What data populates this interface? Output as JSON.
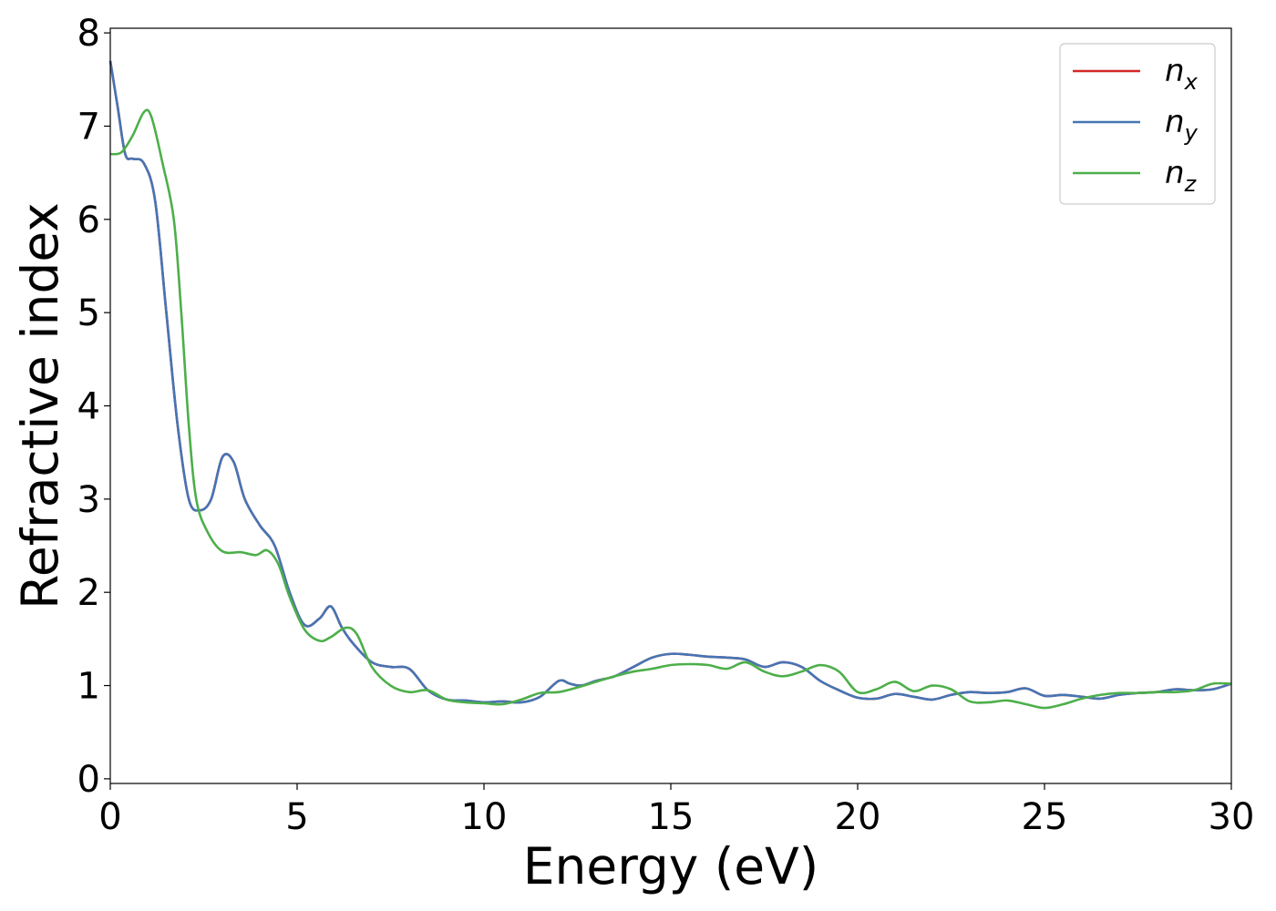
{
  "chart_data": {
    "type": "line",
    "xlabel": "Energy (eV)",
    "ylabel": "Refractive index",
    "xlim": [
      0,
      30
    ],
    "ylim": [
      -0.05,
      8.05
    ],
    "xticks": [
      "0",
      "5",
      "10",
      "15",
      "20",
      "25",
      "30"
    ],
    "yticks": [
      "0",
      "1",
      "2",
      "3",
      "4",
      "5",
      "6",
      "7",
      "8"
    ],
    "grid": false,
    "legend_position": "top-right",
    "series": [
      {
        "name": "n_x",
        "label_base": "n",
        "label_sub": "x",
        "color": "#d62728",
        "x": [
          0,
          0.2,
          0.4,
          0.6,
          0.9,
          1.2,
          1.5,
          1.8,
          2.1,
          2.4,
          2.7,
          3.0,
          3.3,
          3.6,
          4.0,
          4.4,
          4.8,
          5.2,
          5.6,
          5.9,
          6.2,
          6.5,
          7.0,
          7.5,
          8.0,
          8.5,
          9.0,
          9.5,
          10.0,
          10.5,
          11.0,
          11.5,
          12.0,
          12.3,
          12.6,
          13.0,
          13.5,
          14.0,
          14.5,
          15.0,
          15.5,
          16.0,
          16.5,
          17.0,
          17.5,
          18.0,
          18.5,
          19.0,
          19.5,
          20.0,
          20.5,
          21.0,
          21.5,
          22.0,
          22.5,
          23.0,
          23.5,
          24.0,
          24.5,
          25.0,
          25.5,
          26.0,
          26.5,
          27.0,
          27.5,
          28.0,
          28.5,
          29.0,
          29.5,
          30.0
        ],
        "y": [
          7.7,
          7.2,
          6.7,
          6.65,
          6.6,
          6.2,
          5.0,
          3.8,
          3.0,
          2.88,
          3.0,
          3.45,
          3.4,
          3.0,
          2.72,
          2.5,
          2.0,
          1.65,
          1.72,
          1.85,
          1.62,
          1.45,
          1.25,
          1.2,
          1.18,
          0.95,
          0.85,
          0.84,
          0.82,
          0.83,
          0.82,
          0.88,
          1.05,
          1.02,
          1.0,
          1.05,
          1.1,
          1.2,
          1.3,
          1.34,
          1.33,
          1.31,
          1.3,
          1.28,
          1.2,
          1.25,
          1.2,
          1.05,
          0.95,
          0.87,
          0.86,
          0.91,
          0.88,
          0.85,
          0.9,
          0.93,
          0.92,
          0.93,
          0.97,
          0.89,
          0.9,
          0.88,
          0.86,
          0.9,
          0.92,
          0.93,
          0.96,
          0.95,
          0.96,
          1.02
        ]
      },
      {
        "name": "n_y",
        "label_base": "n",
        "label_sub": "y",
        "color": "#4575b4",
        "x": [
          0,
          0.2,
          0.4,
          0.6,
          0.9,
          1.2,
          1.5,
          1.8,
          2.1,
          2.4,
          2.7,
          3.0,
          3.3,
          3.6,
          4.0,
          4.4,
          4.8,
          5.2,
          5.6,
          5.9,
          6.2,
          6.5,
          7.0,
          7.5,
          8.0,
          8.5,
          9.0,
          9.5,
          10.0,
          10.5,
          11.0,
          11.5,
          12.0,
          12.3,
          12.6,
          13.0,
          13.5,
          14.0,
          14.5,
          15.0,
          15.5,
          16.0,
          16.5,
          17.0,
          17.5,
          18.0,
          18.5,
          19.0,
          19.5,
          20.0,
          20.5,
          21.0,
          21.5,
          22.0,
          22.5,
          23.0,
          23.5,
          24.0,
          24.5,
          25.0,
          25.5,
          26.0,
          26.5,
          27.0,
          27.5,
          28.0,
          28.5,
          29.0,
          29.5,
          30.0
        ],
        "y": [
          7.7,
          7.2,
          6.7,
          6.65,
          6.6,
          6.2,
          5.0,
          3.8,
          3.0,
          2.88,
          3.0,
          3.45,
          3.4,
          3.0,
          2.72,
          2.5,
          2.0,
          1.65,
          1.72,
          1.85,
          1.62,
          1.45,
          1.25,
          1.2,
          1.18,
          0.95,
          0.85,
          0.84,
          0.82,
          0.83,
          0.82,
          0.88,
          1.05,
          1.02,
          1.0,
          1.05,
          1.1,
          1.2,
          1.3,
          1.34,
          1.33,
          1.31,
          1.3,
          1.28,
          1.2,
          1.25,
          1.2,
          1.05,
          0.95,
          0.87,
          0.86,
          0.91,
          0.88,
          0.85,
          0.9,
          0.93,
          0.92,
          0.93,
          0.97,
          0.89,
          0.9,
          0.88,
          0.86,
          0.9,
          0.92,
          0.93,
          0.96,
          0.95,
          0.96,
          1.02
        ]
      },
      {
        "name": "n_z",
        "label_base": "n",
        "label_sub": "z",
        "color": "#4daf4a",
        "x": [
          0,
          0.3,
          0.6,
          0.9,
          1.1,
          1.4,
          1.7,
          1.9,
          2.1,
          2.3,
          2.6,
          3.0,
          3.5,
          3.9,
          4.2,
          4.5,
          4.8,
          5.2,
          5.6,
          5.9,
          6.3,
          6.6,
          7.0,
          7.5,
          8.0,
          8.5,
          9.0,
          9.5,
          10.0,
          10.5,
          11.0,
          11.5,
          12.0,
          12.5,
          13.0,
          13.5,
          14.0,
          14.5,
          15.0,
          15.5,
          16.0,
          16.5,
          17.0,
          17.5,
          18.0,
          18.5,
          19.0,
          19.5,
          20.0,
          20.5,
          21.0,
          21.5,
          22.0,
          22.5,
          23.0,
          23.5,
          24.0,
          24.5,
          25.0,
          25.5,
          26.0,
          26.5,
          27.0,
          27.5,
          28.0,
          28.5,
          29.0,
          29.5,
          30.0
        ],
        "y": [
          6.7,
          6.72,
          6.9,
          7.15,
          7.1,
          6.6,
          6.0,
          5.0,
          3.8,
          3.0,
          2.65,
          2.44,
          2.43,
          2.4,
          2.45,
          2.3,
          1.95,
          1.6,
          1.48,
          1.52,
          1.62,
          1.55,
          1.2,
          1.0,
          0.93,
          0.95,
          0.85,
          0.82,
          0.81,
          0.8,
          0.85,
          0.92,
          0.93,
          0.98,
          1.04,
          1.1,
          1.15,
          1.18,
          1.22,
          1.23,
          1.22,
          1.18,
          1.25,
          1.15,
          1.1,
          1.15,
          1.22,
          1.15,
          0.93,
          0.96,
          1.04,
          0.94,
          1.0,
          0.96,
          0.83,
          0.82,
          0.84,
          0.8,
          0.76,
          0.8,
          0.86,
          0.9,
          0.92,
          0.92,
          0.93,
          0.93,
          0.95,
          1.02,
          1.02
        ]
      }
    ]
  }
}
